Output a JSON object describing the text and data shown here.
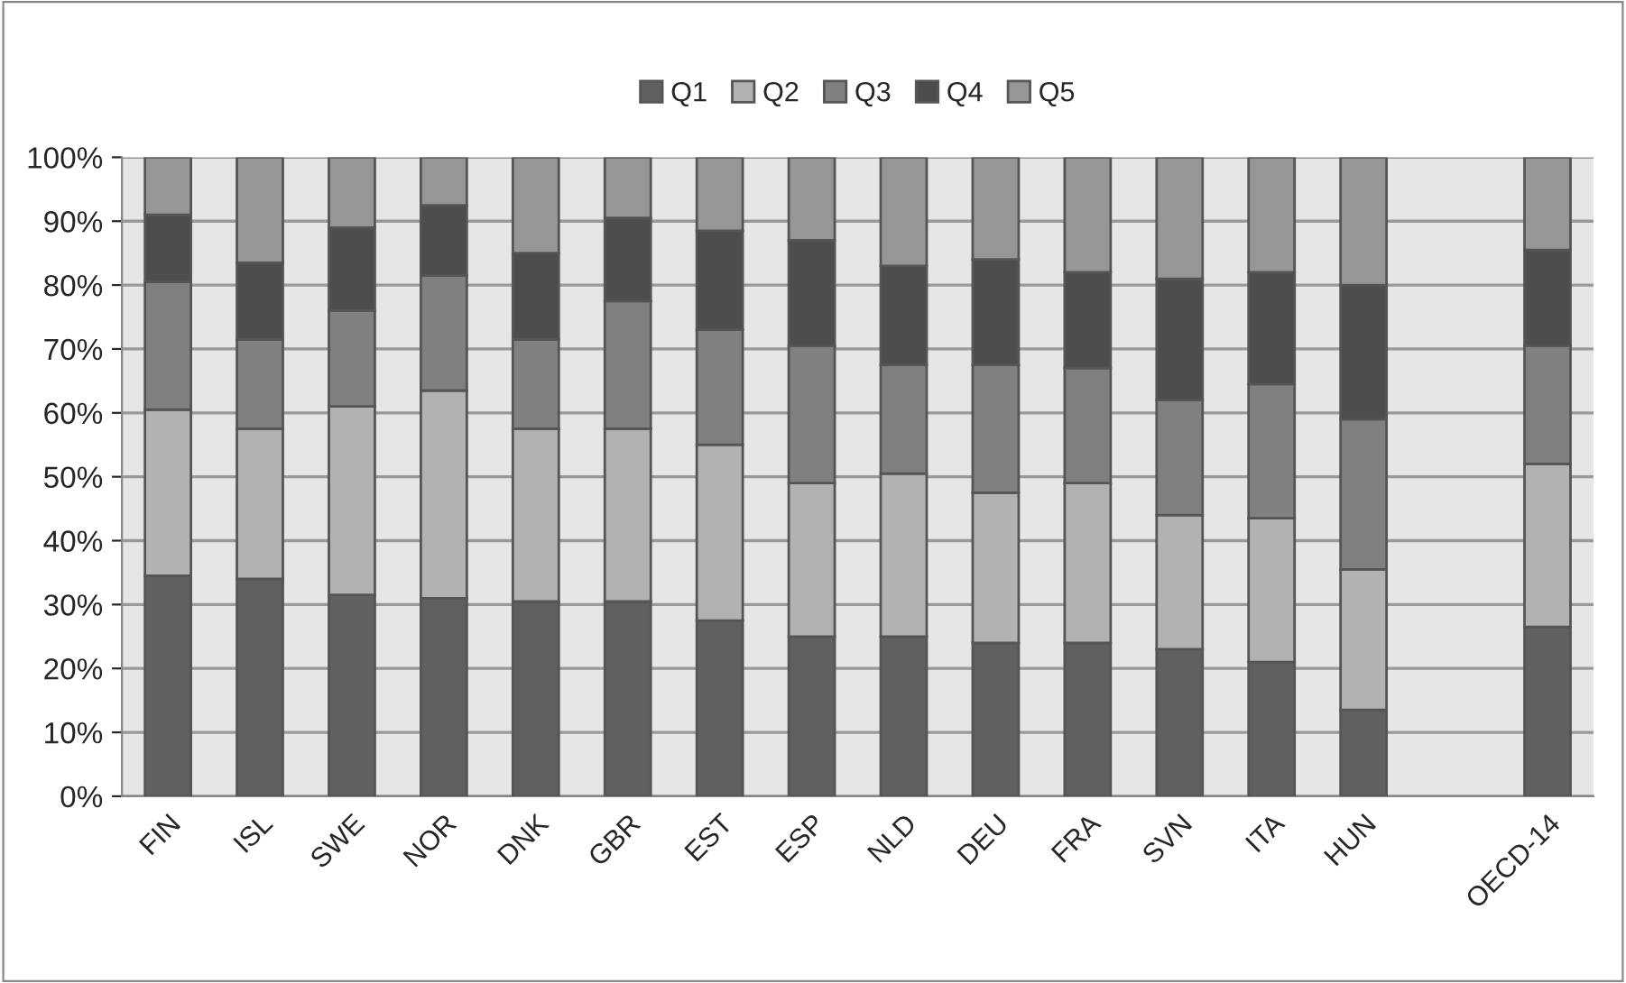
{
  "chart_data": {
    "type": "bar",
    "stacked": true,
    "categories": [
      "FIN",
      "ISL",
      "SWE",
      "NOR",
      "DNK",
      "GBR",
      "EST",
      "ESP",
      "NLD",
      "DEU",
      "FRA",
      "SVN",
      "ITA",
      "HUN",
      null,
      "OECD-14"
    ],
    "series": [
      {
        "name": "Q1",
        "color": "#606060",
        "values": [
          34.5,
          34,
          31.5,
          31,
          30.5,
          30.5,
          27.5,
          25,
          25,
          24,
          24,
          23,
          21,
          13.5,
          null,
          26.5
        ]
      },
      {
        "name": "Q2",
        "color": "#b2b2b2",
        "values": [
          26,
          23.5,
          29.5,
          32.5,
          27,
          27,
          27.5,
          24,
          25.5,
          23.5,
          25,
          21,
          22.5,
          22,
          null,
          25.5
        ]
      },
      {
        "name": "Q3",
        "color": "#808080",
        "values": [
          20,
          14,
          15,
          18,
          14,
          20,
          18,
          21.5,
          17,
          20,
          18,
          18,
          21,
          23.5,
          null,
          18.5
        ]
      },
      {
        "name": "Q4",
        "color": "#4d4d4d",
        "values": [
          10.5,
          12,
          13,
          11,
          13.5,
          13,
          15.5,
          16.5,
          15.5,
          16.5,
          15,
          19,
          17.5,
          21,
          null,
          15
        ]
      },
      {
        "name": "Q5",
        "color": "#969696",
        "values": [
          9,
          16.5,
          11,
          7.5,
          15,
          9.5,
          11.5,
          13,
          17,
          16,
          18,
          19,
          18,
          20,
          null,
          14.5
        ]
      }
    ],
    "ylim": [
      0,
      100
    ],
    "yticks": [
      {
        "value": 0,
        "label": "0%"
      },
      {
        "value": 10,
        "label": "10%"
      },
      {
        "value": 20,
        "label": "20%"
      },
      {
        "value": 30,
        "label": "30%"
      },
      {
        "value": 40,
        "label": "40%"
      },
      {
        "value": 50,
        "label": "50%"
      },
      {
        "value": 60,
        "label": "60%"
      },
      {
        "value": 70,
        "label": "70%"
      },
      {
        "value": 80,
        "label": "80%"
      },
      {
        "value": 90,
        "label": "90%"
      },
      {
        "value": 100,
        "label": "100%"
      }
    ],
    "grid": "y",
    "legend": "top"
  }
}
